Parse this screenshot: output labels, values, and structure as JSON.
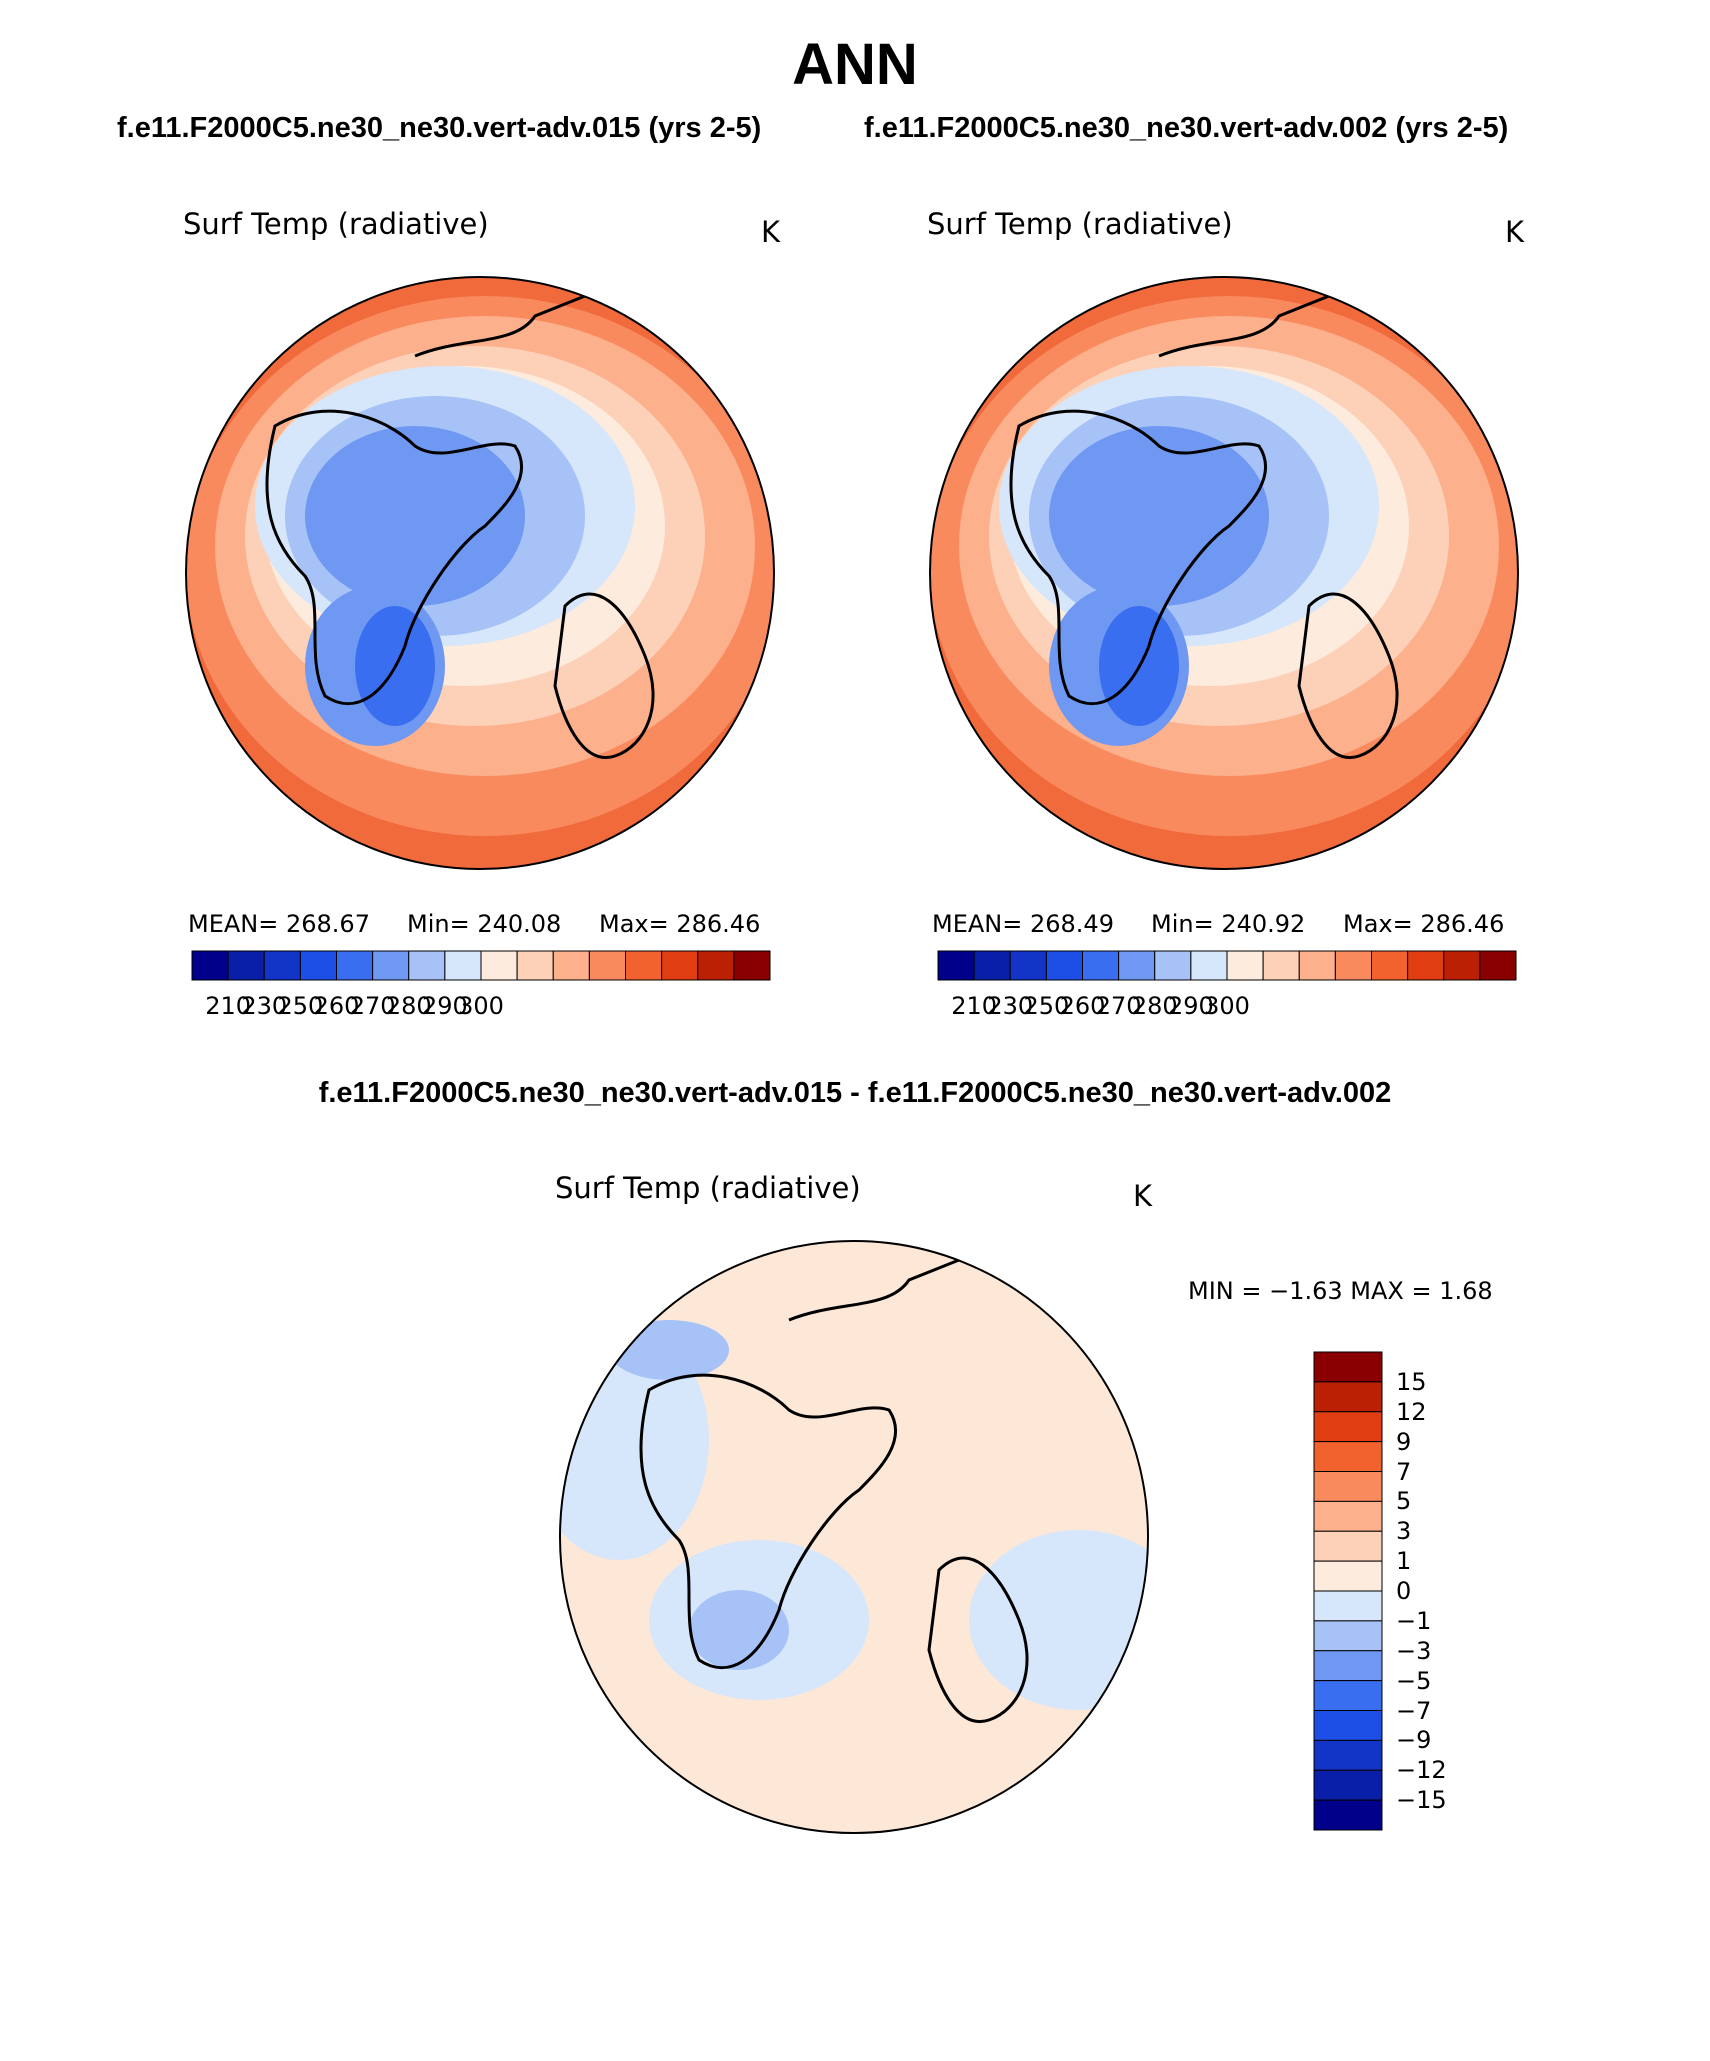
{
  "title": "ANN",
  "subtitles": [
    "f.e11.F2000C5.ne30_ne30.vert-adv.015 (yrs 2-5)",
    "f.e11.F2000C5.ne30_ne30.vert-adv.002 (yrs 2-5)"
  ],
  "panels": [
    {
      "title": "Surf Temp (radiative)",
      "units": "K",
      "stats": {
        "mean": "MEAN= 268.67",
        "min": "Min= 240.08",
        "max": "Max= 286.46"
      },
      "colorbar": {
        "ticks": [
          "210",
          "230",
          "250",
          "260",
          "270",
          "280",
          "290",
          "300"
        ],
        "colors": [
          "#00008b",
          "#0a1fa8",
          "#1235c8",
          "#1d4fe6",
          "#3a6ef0",
          "#6f98f2",
          "#a6c2f7",
          "#d6e6fb",
          "#fdebdd",
          "#fdd1b8",
          "#fcb08c",
          "#f98a5e",
          "#f2622f",
          "#e03e12",
          "#bb2005",
          "#8a0000"
        ]
      }
    },
    {
      "title": "Surf Temp (radiative)",
      "units": "K",
      "stats": {
        "mean": "MEAN= 268.49",
        "min": "Min= 240.92",
        "max": "Max= 286.46"
      },
      "colorbar": {
        "ticks": [
          "210",
          "230",
          "250",
          "260",
          "270",
          "280",
          "290",
          "300"
        ],
        "colors": [
          "#00008b",
          "#0a1fa8",
          "#1235c8",
          "#1d4fe6",
          "#3a6ef0",
          "#6f98f2",
          "#a6c2f7",
          "#d6e6fb",
          "#fdebdd",
          "#fdd1b8",
          "#fcb08c",
          "#f98a5e",
          "#f2622f",
          "#e03e12",
          "#bb2005",
          "#8a0000"
        ]
      }
    }
  ],
  "difference": {
    "title": "f.e11.F2000C5.ne30_ne30.vert-adv.015 - f.e11.F2000C5.ne30_ne30.vert-adv.002",
    "panel_title": "Surf Temp (radiative)",
    "units": "K",
    "minmax": "MIN =   −1.63 MAX =    1.68",
    "colorbar": {
      "ticks": [
        "15",
        "12",
        "9",
        "7",
        "5",
        "3",
        "1",
        "0",
        "−1",
        "−3",
        "−5",
        "−7",
        "−9",
        "−12",
        "−15"
      ],
      "colors": [
        "#8a0000",
        "#bb2005",
        "#e03e12",
        "#f2622f",
        "#f98a5e",
        "#fcb08c",
        "#fdd1b8",
        "#fdebdd",
        "#d6e6fb",
        "#a6c2f7",
        "#6f98f2",
        "#3a6ef0",
        "#1d4fe6",
        "#1235c8",
        "#0a1fa8",
        "#00008b"
      ]
    }
  },
  "map_colors": {
    "warm_edge": "#f06a3c",
    "warm": "#f98a5e",
    "light_warm": "#fcb08c",
    "pale_warm": "#fdd1b8",
    "neutral": "#fdebdd",
    "pale_cold": "#d6e6fb",
    "cold": "#a6c2f7",
    "colder": "#6f98f2",
    "coldest": "#3a6ef0",
    "diff_background": "#fde8d8",
    "diff_cold": "#d6e6fb",
    "diff_cold2": "#a6c2f7"
  }
}
